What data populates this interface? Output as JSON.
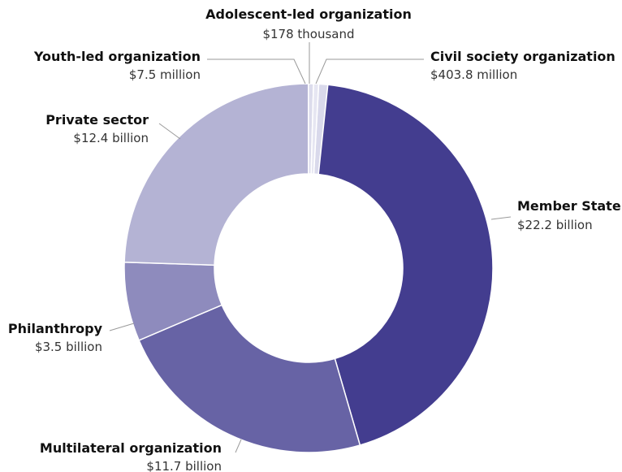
{
  "chart_data": {
    "type": "pie",
    "donut": true,
    "title": "",
    "unit": "USD",
    "slices": [
      {
        "key": "civil",
        "label": "Civil society organization",
        "value_text": "$403.8 million",
        "value": 0.4038,
        "color": "#d9d9eb"
      },
      {
        "key": "member",
        "label": "Member State",
        "value_text": "$22.2 billion",
        "value": 22.2,
        "color": "#433d8f"
      },
      {
        "key": "multi",
        "label": "Multilateral organization",
        "value_text": "$11.7 billion",
        "value": 11.7,
        "color": "#6763a5"
      },
      {
        "key": "phil",
        "label": "Philanthropy",
        "value_text": "$3.5 billion",
        "value": 3.5,
        "color": "#8e8bbd"
      },
      {
        "key": "private",
        "label": "Private sector",
        "value_text": "$12.4 billion",
        "value": 12.4,
        "color": "#b4b3d4"
      },
      {
        "key": "youth",
        "label": "Youth-led organization",
        "value_text": "$7.5 million",
        "value": 0.0075,
        "color": "#dcdcec"
      },
      {
        "key": "adol",
        "label": "Adolescent-led organization",
        "value_text": "$178 thousand",
        "value": 0.000178,
        "color": "#e6e6f2"
      }
    ]
  }
}
